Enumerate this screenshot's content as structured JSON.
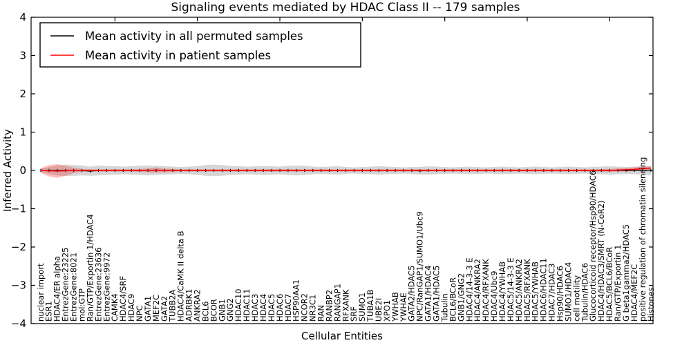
{
  "title": "Signaling events mediated by HDAC Class II -- 179 samples",
  "legend": {
    "entries": [
      {
        "label": "Mean activity in all permuted samples",
        "color": "#000000"
      },
      {
        "label": "Mean activity in patient samples",
        "color": "#ff0000"
      }
    ]
  },
  "axes": {
    "yticks": [
      {
        "v": 4,
        "label": "4"
      },
      {
        "v": 3,
        "label": "3"
      },
      {
        "v": 2,
        "label": "2"
      },
      {
        "v": 1,
        "label": "1"
      },
      {
        "v": 0,
        "label": "0"
      },
      {
        "v": -1,
        "label": "−1"
      },
      {
        "v": -2,
        "label": "−2"
      },
      {
        "v": -3,
        "label": "−3"
      },
      {
        "v": -4,
        "label": "−4"
      }
    ],
    "top_tick_indices": [
      9,
      19,
      29,
      39,
      49,
      59,
      69
    ]
  },
  "chart_data": {
    "type": "line",
    "title": "Signaling events mediated by HDAC Class II -- 179 samples",
    "xlabel": "Cellular Entities",
    "ylabel": "Inferred Activity",
    "ylim": [
      -4,
      4
    ],
    "grid": false,
    "legend_position": "upper left",
    "categories": [
      "nuclear import",
      "ESR1",
      "HDAC4/ER alpha",
      "EntrezGene:23225",
      "EntrezGene:8021",
      "mol:GTP",
      "Ran/GTP/Exportin 1/HDAC4",
      "EntrezGene:23636",
      "EntrezGene:9972",
      "CAMK4",
      "HDAC4/SRF",
      "HDAC9",
      "NPC",
      "GATA1",
      "MEF2C",
      "GATA2",
      "TUBB2A",
      "HDAC4/CaMK II delta B",
      "ADRBK1",
      "ANKRA2",
      "BCL6",
      "BCOR",
      "GNB1",
      "GNG2",
      "HDAC10",
      "HDAC11",
      "HDAC3",
      "HDAC4",
      "HDAC5",
      "HDAC6",
      "HDAC7",
      "HSP90AA1",
      "NCOR2",
      "NR3C1",
      "RAN",
      "RANBP2",
      "RANGAP1",
      "RFXANK",
      "SRF",
      "SUMO1",
      "TUBA1B",
      "UBE2I",
      "XPO1",
      "YWHAB",
      "YWHAE",
      "GATA2/HDAC5",
      "NPC/RanGAP1/SUMO1/Ubc9",
      "GATA1/HDAC4",
      "GATA1/HDAC5",
      "Tubulin",
      "BCL6/BCoR",
      "GNB1/GNG2",
      "HDAC4/14-3-3 E",
      "HDAC4/ANKRA2",
      "HDAC4/RFXANK",
      "HDAC4/Ubc9",
      "HDAC4/YWHAB",
      "HDAC5/14-3-3 E",
      "HDAC5/ANKRA2",
      "HDAC5/RFXANK",
      "HDAC5/YWHAB",
      "HDAC6/HDAC11",
      "HDAC7/HDAC3",
      "Hsp90/HDAC6",
      "SUMO1/HDAC4",
      "cell motility",
      "Tubulin/HDAC6",
      "Glucocorticoid receptor/Hsp90/HDAC6",
      "HDAC4/HDAC3/SMRT (N-CoR2)",
      "HDAC5/BCL6/BCoR",
      "Ran/GTP/Exportin 1",
      "G beta1gamma2/HDAC5",
      "HDAC4/MEF2C",
      "positive regulation of chromatin silencing",
      "Histones"
    ],
    "series": [
      {
        "name": "Mean activity in all permuted samples",
        "color": "#000000",
        "band_color": "#c8c8c8",
        "band_opacity": 0.75,
        "marker": "tick",
        "values": [
          0,
          0,
          0,
          0,
          0,
          0,
          -0.02,
          0,
          0,
          0,
          0,
          0,
          0,
          0,
          0,
          0,
          0,
          0,
          0,
          0,
          0,
          0,
          0,
          0,
          0,
          0,
          0,
          0,
          0,
          0,
          0,
          0,
          0,
          0,
          0,
          0,
          0,
          0,
          0,
          0,
          0,
          0,
          0,
          0,
          0,
          0,
          -0.01,
          0,
          0,
          0,
          0,
          0,
          0,
          0,
          0,
          0,
          0,
          0,
          0,
          0,
          0,
          0,
          0,
          0,
          0,
          0,
          0,
          0,
          0,
          0,
          0,
          0,
          0,
          0,
          0
        ],
        "band_half_width": [
          0.05,
          0.09,
          0.13,
          0.15,
          0.14,
          0.13,
          0.12,
          0.13,
          0.12,
          0.11,
          0.1,
          0.11,
          0.12,
          0.13,
          0.12,
          0.11,
          0.1,
          0.09,
          0.1,
          0.12,
          0.14,
          0.15,
          0.14,
          0.12,
          0.11,
          0.1,
          0.11,
          0.12,
          0.11,
          0.1,
          0.12,
          0.13,
          0.12,
          0.1,
          0.09,
          0.1,
          0.11,
          0.09,
          0.08,
          0.09,
          0.1,
          0.11,
          0.1,
          0.09,
          0.08,
          0.09,
          0.1,
          0.11,
          0.1,
          0.09,
          0.08,
          0.09,
          0.1,
          0.09,
          0.08,
          0.09,
          0.1,
          0.09,
          0.08,
          0.09,
          0.1,
          0.09,
          0.08,
          0.09,
          0.1,
          0.09,
          0.08,
          0.09,
          0.1,
          0.11,
          0.1,
          0.09,
          0.1,
          0.11,
          0.12
        ]
      },
      {
        "name": "Mean activity in patient samples",
        "color": "#ff0000",
        "band_color": "#ff0000",
        "band_opacity": 0.25,
        "marker": "none",
        "values": [
          0,
          -0.01,
          -0.015,
          -0.01,
          0,
          0,
          0,
          0,
          0,
          0,
          0,
          0,
          0,
          0,
          0.01,
          0,
          0,
          0,
          0,
          0,
          0,
          0,
          0,
          0,
          0,
          0,
          0,
          0,
          0,
          0,
          0,
          0,
          0,
          0,
          0,
          0,
          0,
          0,
          0,
          0,
          0,
          0,
          0,
          0,
          0,
          0,
          0,
          0,
          0,
          0,
          0,
          0,
          0,
          0,
          0,
          0,
          0,
          0,
          0,
          0,
          0,
          0,
          0,
          0,
          0,
          0,
          0,
          0,
          0,
          0,
          0.01,
          0.02,
          0.03,
          0.045,
          0.06
        ],
        "band_half_width": [
          0.06,
          0.15,
          0.18,
          0.13,
          0.07,
          0.04,
          0.03,
          0.03,
          0.03,
          0.03,
          0.03,
          0.03,
          0.04,
          0.05,
          0.07,
          0.05,
          0.04,
          0.03,
          0.03,
          0.03,
          0.03,
          0.03,
          0.03,
          0.03,
          0.03,
          0.03,
          0.03,
          0.03,
          0.03,
          0.03,
          0.03,
          0.03,
          0.03,
          0.03,
          0.03,
          0.03,
          0.03,
          0.03,
          0.03,
          0.03,
          0.03,
          0.03,
          0.03,
          0.03,
          0.03,
          0.03,
          0.03,
          0.03,
          0.03,
          0.03,
          0.03,
          0.03,
          0.03,
          0.03,
          0.03,
          0.03,
          0.03,
          0.03,
          0.03,
          0.03,
          0.03,
          0.03,
          0.03,
          0.03,
          0.03,
          0.03,
          0.03,
          0.03,
          0.035,
          0.04,
          0.04,
          0.045,
          0.05,
          0.05,
          0.05
        ]
      }
    ]
  }
}
